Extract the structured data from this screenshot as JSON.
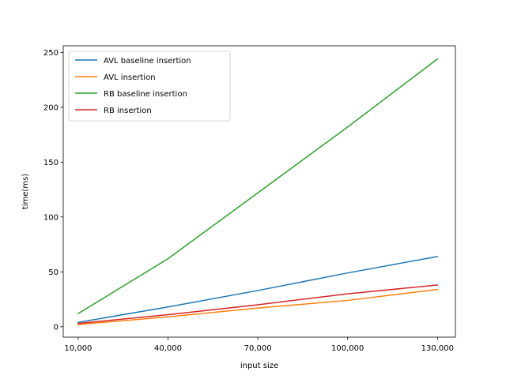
{
  "chart_data": {
    "type": "line",
    "xlabel": "input size",
    "ylabel": "time(ms)",
    "x": [
      10000,
      40000,
      70000,
      100000,
      130000
    ],
    "x_tick_labels": [
      "10,000",
      "40,000",
      "70,000",
      "100,000",
      "130,000"
    ],
    "y_ticks": [
      0,
      50,
      100,
      150,
      200,
      250
    ],
    "y_tick_labels": [
      "0",
      "50",
      "100",
      "150",
      "200",
      "250"
    ],
    "xlim": [
      5000,
      136000
    ],
    "ylim": [
      -9.5,
      256
    ],
    "grid": false,
    "legend_placement": "top-left",
    "series": [
      {
        "name": "AVL baseline insertion",
        "color": "#1f77b4",
        "values": [
          4,
          18,
          33,
          49,
          64
        ]
      },
      {
        "name": "AVL insertion",
        "color": "#ff7f0e",
        "values": [
          2,
          9,
          17,
          24,
          34
        ]
      },
      {
        "name": "RB baseline insertion",
        "color": "#2ca02c",
        "values": [
          12,
          62,
          122,
          182,
          244
        ]
      },
      {
        "name": "RB insertion",
        "color": "#d62728",
        "values": [
          3,
          11,
          20,
          30,
          38
        ]
      }
    ]
  }
}
